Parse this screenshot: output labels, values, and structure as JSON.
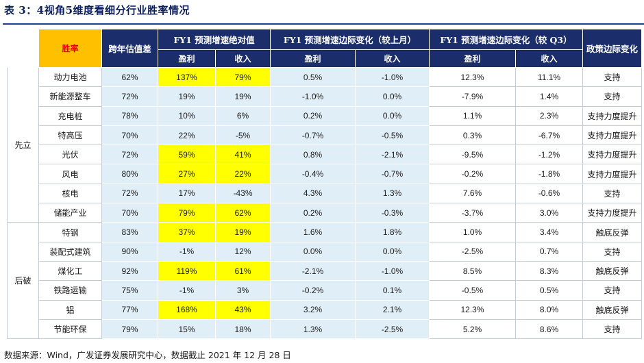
{
  "title": "表 3：4视角5维度看细分行业胜率情况",
  "header": {
    "key": "胜率",
    "valuation": "跨年估值差",
    "fy1_abs": "FY1 预测增速绝对值",
    "fy1_mom": "FY1 预测增速边际变化（较上月）",
    "fy1_q3": "FY1 预测增速边际变化（较 Q3）",
    "policy": "政策边际变化",
    "profit": "盈利",
    "revenue": "收入"
  },
  "groups": [
    {
      "name": "先立",
      "rows": [
        0,
        1,
        2,
        3,
        4,
        5,
        6,
        7
      ]
    },
    {
      "name": "后破",
      "rows": [
        8,
        9,
        10,
        11,
        12,
        13
      ]
    }
  ],
  "rows": [
    {
      "name": "动力电池",
      "val": "62%",
      "abs_profit": "137%",
      "abs_rev": "79%",
      "mom_profit": "0.5%",
      "mom_rev": "-1.0%",
      "q3_profit": "12.3%",
      "q3_rev": "11.1%",
      "policy": "支持",
      "hl": true
    },
    {
      "name": "新能源整车",
      "val": "72%",
      "abs_profit": "19%",
      "abs_rev": "19%",
      "mom_profit": "-1.0%",
      "mom_rev": "0.0%",
      "q3_profit": "-7.9%",
      "q3_rev": "1.4%",
      "policy": "支持",
      "hl": false
    },
    {
      "name": "充电桩",
      "val": "78%",
      "abs_profit": "10%",
      "abs_rev": "6%",
      "mom_profit": "0.2%",
      "mom_rev": "0.0%",
      "q3_profit": "1.1%",
      "q3_rev": "2.3%",
      "policy": "支持力度提升",
      "hl": false
    },
    {
      "name": "特高压",
      "val": "70%",
      "abs_profit": "22%",
      "abs_rev": "-5%",
      "mom_profit": "-0.7%",
      "mom_rev": "-0.5%",
      "q3_profit": "0.3%",
      "q3_rev": "-6.7%",
      "policy": "支持力度提升",
      "hl": false
    },
    {
      "name": "光伏",
      "val": "72%",
      "abs_profit": "59%",
      "abs_rev": "41%",
      "mom_profit": "0.8%",
      "mom_rev": "-2.1%",
      "q3_profit": "-9.5%",
      "q3_rev": "-1.2%",
      "policy": "支持力度提升",
      "hl": true
    },
    {
      "name": "风电",
      "val": "80%",
      "abs_profit": "27%",
      "abs_rev": "22%",
      "mom_profit": "-0.4%",
      "mom_rev": "-0.7%",
      "q3_profit": "-0.2%",
      "q3_rev": "-1.8%",
      "policy": "支持力度提升",
      "hl": true
    },
    {
      "name": "核电",
      "val": "72%",
      "abs_profit": "17%",
      "abs_rev": "-43%",
      "mom_profit": "4.3%",
      "mom_rev": "1.3%",
      "q3_profit": "7.6%",
      "q3_rev": "-0.6%",
      "policy": "支持",
      "hl": false
    },
    {
      "name": "储能产业",
      "val": "70%",
      "abs_profit": "79%",
      "abs_rev": "62%",
      "mom_profit": "0.2%",
      "mom_rev": "-0.3%",
      "q3_profit": "-3.7%",
      "q3_rev": "3.0%",
      "policy": "支持力度提升",
      "hl": true
    },
    {
      "name": "特钢",
      "val": "83%",
      "abs_profit": "37%",
      "abs_rev": "19%",
      "mom_profit": "1.6%",
      "mom_rev": "1.8%",
      "q3_profit": "1.0%",
      "q3_rev": "3.4%",
      "policy": "触底反弹",
      "hl": true
    },
    {
      "name": "装配式建筑",
      "val": "90%",
      "abs_profit": "-1%",
      "abs_rev": "12%",
      "mom_profit": "0.0%",
      "mom_rev": "0.0%",
      "q3_profit": "-2.5%",
      "q3_rev": "0.7%",
      "policy": "支持",
      "hl": false
    },
    {
      "name": "煤化工",
      "val": "92%",
      "abs_profit": "119%",
      "abs_rev": "61%",
      "mom_profit": "-2.1%",
      "mom_rev": "-1.0%",
      "q3_profit": "8.5%",
      "q3_rev": "8.3%",
      "policy": "触底反弹",
      "hl": true
    },
    {
      "name": "铁路运输",
      "val": "75%",
      "abs_profit": "-1%",
      "abs_rev": "3%",
      "mom_profit": "-0.2%",
      "mom_rev": "0.1%",
      "q3_profit": "-0.5%",
      "q3_rev": "0.5%",
      "policy": "支持",
      "hl": false
    },
    {
      "name": "铝",
      "val": "77%",
      "abs_profit": "168%",
      "abs_rev": "43%",
      "mom_profit": "3.2%",
      "mom_rev": "2.1%",
      "q3_profit": "12.3%",
      "q3_rev": "8.0%",
      "policy": "触底反弹",
      "hl": true
    },
    {
      "name": "节能环保",
      "val": "79%",
      "abs_profit": "15%",
      "abs_rev": "18%",
      "mom_profit": "1.3%",
      "mom_rev": "-2.5%",
      "q3_profit": "5.2%",
      "q3_rev": "8.6%",
      "policy": "支持",
      "hl": false
    }
  ],
  "footer": "数据来源：Wind，广发证券发展研究中心，数据截止 2021 年 12 月 28 日",
  "colors": {
    "header": "#1b2e6b",
    "highlight": "#ffff00",
    "key": "#ffc000",
    "cell": "#dfeef7"
  }
}
